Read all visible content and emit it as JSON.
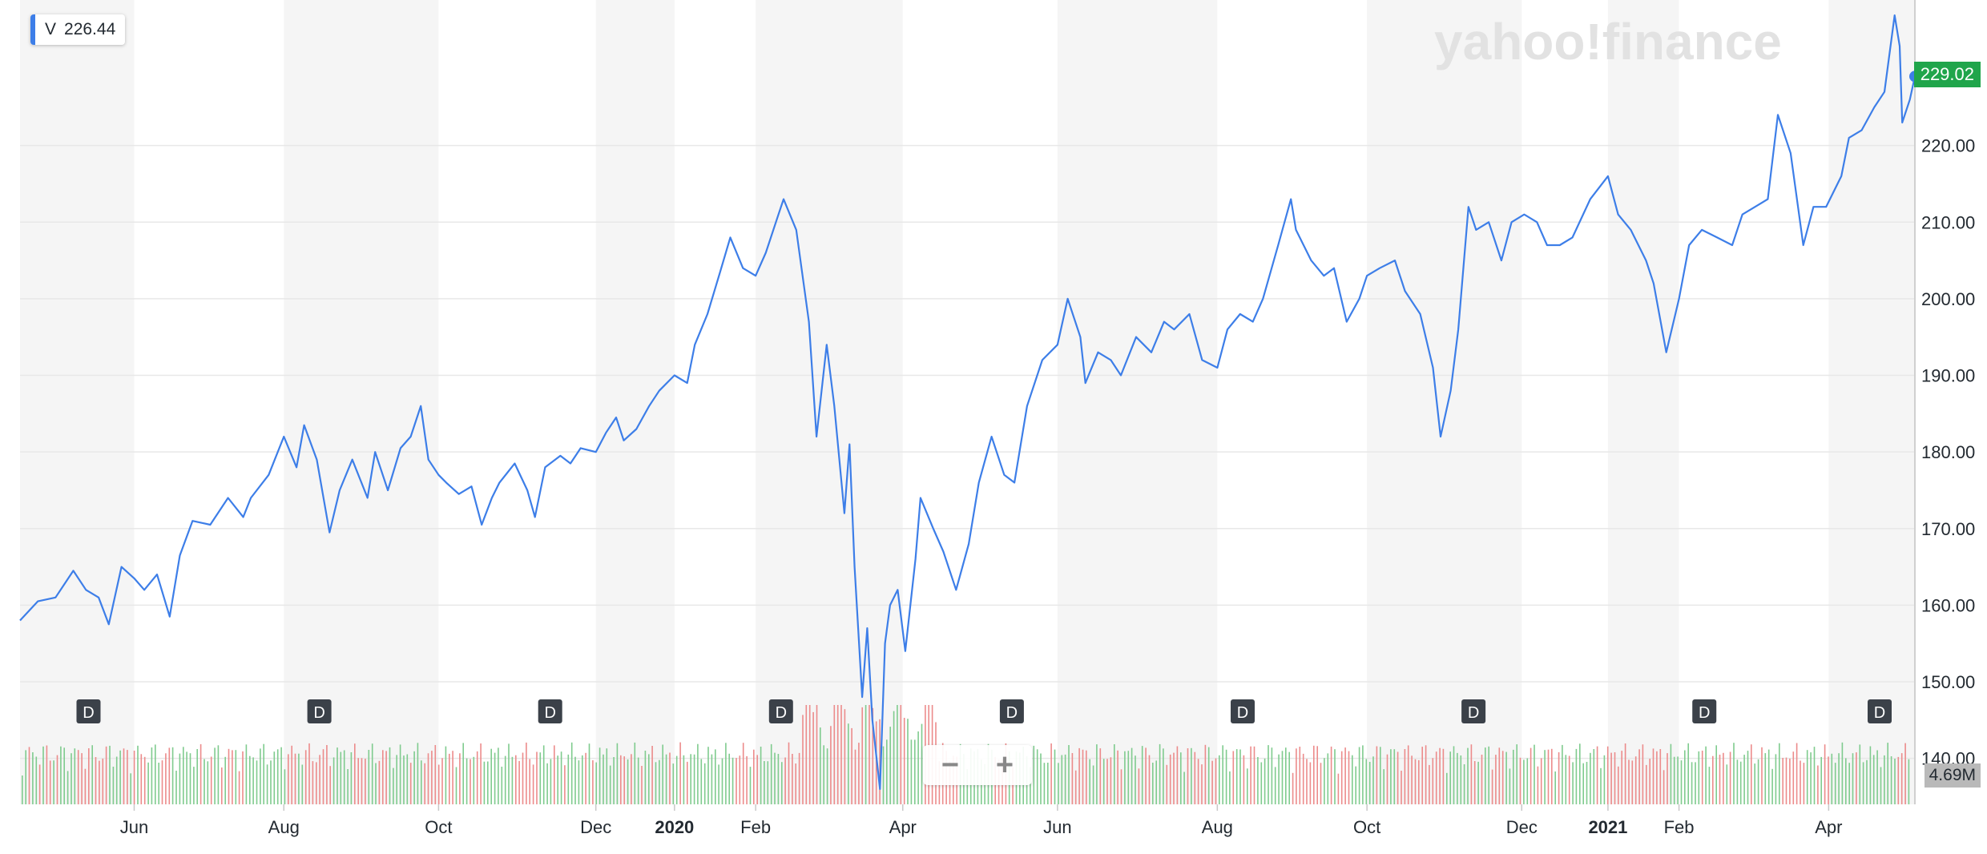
{
  "legend": {
    "symbol": "V",
    "value": "226.44"
  },
  "watermark": "yahoo!finance",
  "last_price_label": "229.02",
  "volume_label": "4.69M",
  "zoom": {
    "minus": "−",
    "plus": "+"
  },
  "dividend_marker_label": "D",
  "colors": {
    "line": "#3d7ee8",
    "up_volume": "#7fcb8e",
    "down_volume": "#ec8b8b",
    "band": "#f5f5f5",
    "grid": "#e8e8e8",
    "price_tag": "#20a54b",
    "badge": "#3b4149"
  },
  "chart_data": {
    "type": "line",
    "title": "",
    "xlabel": "",
    "ylabel": "",
    "ylim": [
      134,
      239
    ],
    "grid": true,
    "y_ticks": [
      220,
      210,
      200,
      190,
      180,
      170,
      160,
      150,
      140
    ],
    "y_tick_labels": [
      "220.00",
      "210.00",
      "200.00",
      "190.00",
      "180.00",
      "170.00",
      "160.00",
      "150.00",
      "140.00"
    ],
    "x_ticks": [
      {
        "date": "2019-06-03",
        "label": "Jun",
        "bold": false
      },
      {
        "date": "2019-08-01",
        "label": "Aug",
        "bold": false
      },
      {
        "date": "2019-10-01",
        "label": "Oct",
        "bold": false
      },
      {
        "date": "2019-12-02",
        "label": "Dec",
        "bold": false
      },
      {
        "date": "2020-01-02",
        "label": "2020",
        "bold": true
      },
      {
        "date": "2020-02-03",
        "label": "Feb",
        "bold": false
      },
      {
        "date": "2020-04-01",
        "label": "Apr",
        "bold": false
      },
      {
        "date": "2020-06-01",
        "label": "Jun",
        "bold": false
      },
      {
        "date": "2020-08-03",
        "label": "Aug",
        "bold": false
      },
      {
        "date": "2020-10-01",
        "label": "Oct",
        "bold": false
      },
      {
        "date": "2020-12-01",
        "label": "Dec",
        "bold": false
      },
      {
        "date": "2021-01-04",
        "label": "2021",
        "bold": true
      },
      {
        "date": "2021-02-01",
        "label": "Feb",
        "bold": false
      },
      {
        "date": "2021-04-01",
        "label": "Apr",
        "bold": false
      }
    ],
    "x_range": [
      "2019-04-19",
      "2021-05-05"
    ],
    "series": [
      {
        "values": [
          [
            "2019-04-19",
            158.0
          ],
          [
            "2019-04-26",
            160.5
          ],
          [
            "2019-05-03",
            161.0
          ],
          [
            "2019-05-10",
            164.5
          ],
          [
            "2019-05-15",
            162.0
          ],
          [
            "2019-05-20",
            161.0
          ],
          [
            "2019-05-24",
            157.5
          ],
          [
            "2019-05-29",
            165.0
          ],
          [
            "2019-06-03",
            163.5
          ],
          [
            "2019-06-07",
            162.0
          ],
          [
            "2019-06-12",
            164.0
          ],
          [
            "2019-06-17",
            158.5
          ],
          [
            "2019-06-21",
            166.5
          ],
          [
            "2019-06-26",
            171.0
          ],
          [
            "2019-07-03",
            170.5
          ],
          [
            "2019-07-10",
            174.0
          ],
          [
            "2019-07-16",
            171.5
          ],
          [
            "2019-07-19",
            174.0
          ],
          [
            "2019-07-26",
            177.0
          ],
          [
            "2019-08-01",
            182.0
          ],
          [
            "2019-08-06",
            178.0
          ],
          [
            "2019-08-09",
            183.5
          ],
          [
            "2019-08-14",
            179.0
          ],
          [
            "2019-08-19",
            169.5
          ],
          [
            "2019-08-23",
            175.0
          ],
          [
            "2019-08-28",
            179.0
          ],
          [
            "2019-09-03",
            174.0
          ],
          [
            "2019-09-06",
            180.0
          ],
          [
            "2019-09-11",
            175.0
          ],
          [
            "2019-09-16",
            180.5
          ],
          [
            "2019-09-20",
            182.0
          ],
          [
            "2019-09-24",
            186.0
          ],
          [
            "2019-09-27",
            179.0
          ],
          [
            "2019-10-01",
            177.0
          ],
          [
            "2019-10-04",
            176.0
          ],
          [
            "2019-10-09",
            174.5
          ],
          [
            "2019-10-14",
            175.5
          ],
          [
            "2019-10-18",
            170.5
          ],
          [
            "2019-10-22",
            174.0
          ],
          [
            "2019-10-25",
            176.0
          ],
          [
            "2019-10-31",
            178.5
          ],
          [
            "2019-11-05",
            175.0
          ],
          [
            "2019-11-08",
            171.5
          ],
          [
            "2019-11-12",
            178.0
          ],
          [
            "2019-11-18",
            179.5
          ],
          [
            "2019-11-22",
            178.5
          ],
          [
            "2019-11-26",
            180.5
          ],
          [
            "2019-12-02",
            180.0
          ],
          [
            "2019-12-06",
            182.5
          ],
          [
            "2019-12-10",
            184.5
          ],
          [
            "2019-12-13",
            181.5
          ],
          [
            "2019-12-18",
            183.0
          ],
          [
            "2019-12-23",
            186.0
          ],
          [
            "2019-12-27",
            188.0
          ],
          [
            "2020-01-02",
            190.0
          ],
          [
            "2020-01-07",
            189.0
          ],
          [
            "2020-01-10",
            194.0
          ],
          [
            "2020-01-15",
            198.0
          ],
          [
            "2020-01-20",
            203.5
          ],
          [
            "2020-01-24",
            208.0
          ],
          [
            "2020-01-29",
            204.0
          ],
          [
            "2020-02-03",
            203.0
          ],
          [
            "2020-02-07",
            206.0
          ],
          [
            "2020-02-12",
            211.0
          ],
          [
            "2020-02-14",
            213.0
          ],
          [
            "2020-02-19",
            209.0
          ],
          [
            "2020-02-24",
            197.0
          ],
          [
            "2020-02-27",
            182.0
          ],
          [
            "2020-03-02",
            194.0
          ],
          [
            "2020-03-05",
            186.0
          ],
          [
            "2020-03-09",
            172.0
          ],
          [
            "2020-03-11",
            181.0
          ],
          [
            "2020-03-13",
            165.0
          ],
          [
            "2020-03-16",
            148.0
          ],
          [
            "2020-03-18",
            157.0
          ],
          [
            "2020-03-20",
            145.0
          ],
          [
            "2020-03-23",
            136.0
          ],
          [
            "2020-03-25",
            155.0
          ],
          [
            "2020-03-27",
            160.0
          ],
          [
            "2020-03-30",
            162.0
          ],
          [
            "2020-04-02",
            154.0
          ],
          [
            "2020-04-06",
            166.0
          ],
          [
            "2020-04-08",
            174.0
          ],
          [
            "2020-04-13",
            170.0
          ],
          [
            "2020-04-17",
            167.0
          ],
          [
            "2020-04-22",
            162.0
          ],
          [
            "2020-04-27",
            168.0
          ],
          [
            "2020-05-01",
            176.0
          ],
          [
            "2020-05-06",
            182.0
          ],
          [
            "2020-05-11",
            177.0
          ],
          [
            "2020-05-15",
            176.0
          ],
          [
            "2020-05-20",
            186.0
          ],
          [
            "2020-05-26",
            192.0
          ],
          [
            "2020-06-01",
            194.0
          ],
          [
            "2020-06-05",
            200.0
          ],
          [
            "2020-06-10",
            195.0
          ],
          [
            "2020-06-12",
            189.0
          ],
          [
            "2020-06-17",
            193.0
          ],
          [
            "2020-06-22",
            192.0
          ],
          [
            "2020-06-26",
            190.0
          ],
          [
            "2020-07-02",
            195.0
          ],
          [
            "2020-07-08",
            193.0
          ],
          [
            "2020-07-13",
            197.0
          ],
          [
            "2020-07-17",
            196.0
          ],
          [
            "2020-07-23",
            198.0
          ],
          [
            "2020-07-28",
            192.0
          ],
          [
            "2020-08-03",
            191.0
          ],
          [
            "2020-08-07",
            196.0
          ],
          [
            "2020-08-12",
            198.0
          ],
          [
            "2020-08-17",
            197.0
          ],
          [
            "2020-08-21",
            200.0
          ],
          [
            "2020-08-27",
            207.0
          ],
          [
            "2020-09-01",
            213.0
          ],
          [
            "2020-09-03",
            209.0
          ],
          [
            "2020-09-09",
            205.0
          ],
          [
            "2020-09-14",
            203.0
          ],
          [
            "2020-09-18",
            204.0
          ],
          [
            "2020-09-23",
            197.0
          ],
          [
            "2020-09-28",
            200.0
          ],
          [
            "2020-10-01",
            203.0
          ],
          [
            "2020-10-06",
            204.0
          ],
          [
            "2020-10-12",
            205.0
          ],
          [
            "2020-10-16",
            201.0
          ],
          [
            "2020-10-22",
            198.0
          ],
          [
            "2020-10-27",
            191.0
          ],
          [
            "2020-10-30",
            182.0
          ],
          [
            "2020-11-03",
            188.0
          ],
          [
            "2020-11-06",
            196.0
          ],
          [
            "2020-11-10",
            212.0
          ],
          [
            "2020-11-13",
            209.0
          ],
          [
            "2020-11-18",
            210.0
          ],
          [
            "2020-11-23",
            205.0
          ],
          [
            "2020-11-27",
            210.0
          ],
          [
            "2020-12-02",
            211.0
          ],
          [
            "2020-12-07",
            210.0
          ],
          [
            "2020-12-11",
            207.0
          ],
          [
            "2020-12-16",
            207.0
          ],
          [
            "2020-12-21",
            208.0
          ],
          [
            "2020-12-28",
            213.0
          ],
          [
            "2021-01-04",
            216.0
          ],
          [
            "2021-01-08",
            211.0
          ],
          [
            "2021-01-13",
            209.0
          ],
          [
            "2021-01-19",
            205.0
          ],
          [
            "2021-01-22",
            202.0
          ],
          [
            "2021-01-27",
            193.0
          ],
          [
            "2021-02-01",
            200.0
          ],
          [
            "2021-02-05",
            207.0
          ],
          [
            "2021-02-10",
            209.0
          ],
          [
            "2021-02-16",
            208.0
          ],
          [
            "2021-02-22",
            207.0
          ],
          [
            "2021-02-26",
            211.0
          ],
          [
            "2021-03-03",
            212.0
          ],
          [
            "2021-03-08",
            213.0
          ],
          [
            "2021-03-12",
            224.0
          ],
          [
            "2021-03-17",
            219.0
          ],
          [
            "2021-03-22",
            207.0
          ],
          [
            "2021-03-26",
            212.0
          ],
          [
            "2021-03-31",
            212.0
          ],
          [
            "2021-04-06",
            216.0
          ],
          [
            "2021-04-09",
            221.0
          ],
          [
            "2021-04-14",
            222.0
          ],
          [
            "2021-04-19",
            225.0
          ],
          [
            "2021-04-23",
            227.0
          ],
          [
            "2021-04-27",
            237.0
          ],
          [
            "2021-04-29",
            233.0
          ],
          [
            "2021-04-30",
            223.0
          ],
          [
            "2021-05-03",
            226.0
          ],
          [
            "2021-05-05",
            229.02
          ]
        ]
      }
    ],
    "dividend_dates": [
      "2019-05-16",
      "2019-08-15",
      "2019-11-14",
      "2020-02-13",
      "2020-05-14",
      "2020-08-13",
      "2020-11-12",
      "2021-02-11",
      "2021-05-13"
    ]
  }
}
